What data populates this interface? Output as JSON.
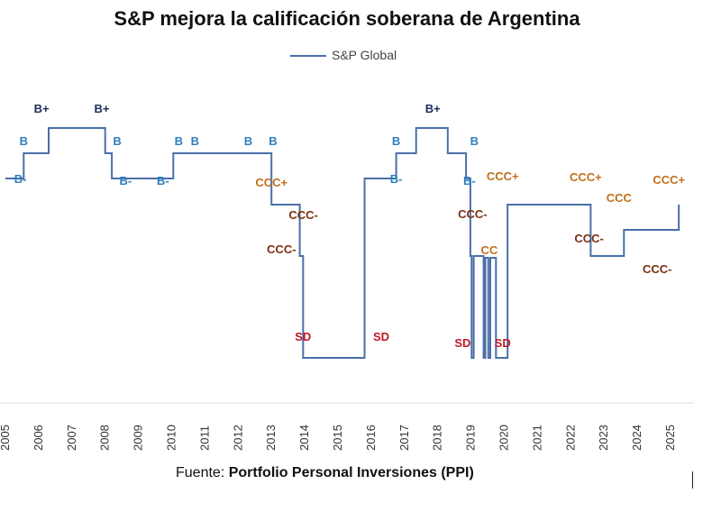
{
  "chart_data": {
    "type": "line",
    "title": "S&P mejora la calificación soberana de Argentina",
    "legend": [
      {
        "name": "S&P Global",
        "color": "#4a6fa8",
        "placement": "top-center"
      }
    ],
    "source_label": "Fuente:",
    "source_name": "Portfolio Personal Inversiones (PPI)",
    "xlabel": "",
    "ylabel": "",
    "grid": false,
    "x_ticks": [
      "2005",
      "2006",
      "2007",
      "2008",
      "2009",
      "2010",
      "2011",
      "2012",
      "2013",
      "2014",
      "2015",
      "2016",
      "2017",
      "2018",
      "2019",
      "2020",
      "2021",
      "2022",
      "2023",
      "2024",
      "2025"
    ],
    "rating_scale": [
      "SD",
      "CC",
      "CCC-",
      "CCC",
      "CCC+",
      "B-",
      "B",
      "B+"
    ],
    "series": [
      {
        "name": "S&P Global",
        "points": [
          {
            "x": 2005.0,
            "rating": "B-"
          },
          {
            "x": 2005.55,
            "rating": "B"
          },
          {
            "x": 2006.3,
            "rating": "B+"
          },
          {
            "x": 2008.0,
            "rating": "B"
          },
          {
            "x": 2008.2,
            "rating": "B-"
          },
          {
            "x": 2010.05,
            "rating": "B"
          },
          {
            "x": 2013.0,
            "rating": "CCC+"
          },
          {
            "x": 2013.85,
            "rating": "CCC-"
          },
          {
            "x": 2013.95,
            "rating": "SD"
          },
          {
            "x": 2015.8,
            "rating": "B-"
          },
          {
            "x": 2016.75,
            "rating": "B"
          },
          {
            "x": 2017.35,
            "rating": "B+"
          },
          {
            "x": 2018.3,
            "rating": "B"
          },
          {
            "x": 2018.85,
            "rating": "B-"
          },
          {
            "x": 2018.98,
            "rating": "CCC-"
          },
          {
            "x": 2019.02,
            "rating": "SD"
          },
          {
            "x": 2019.08,
            "rating": "CCC-"
          },
          {
            "x": 2019.38,
            "rating": "SD"
          },
          {
            "x": 2019.43,
            "rating": "CC"
          },
          {
            "x": 2019.52,
            "rating": "SD"
          },
          {
            "x": 2019.58,
            "rating": "CC"
          },
          {
            "x": 2019.7,
            "rating": "CC"
          },
          {
            "x": 2019.75,
            "rating": "SD"
          },
          {
            "x": 2020.1,
            "rating": "CCC+"
          },
          {
            "x": 2022.6,
            "rating": "CCC-"
          },
          {
            "x": 2023.6,
            "rating": "CCC"
          },
          {
            "x": 2025.25,
            "rating": "CCC+"
          }
        ]
      }
    ],
    "annotations": [
      {
        "text": "B-",
        "x": 2005.45,
        "rating": "B-",
        "color": "#2f7fbf"
      },
      {
        "text": "B",
        "x": 2005.55,
        "rating": "B",
        "color": "#2f7fbf"
      },
      {
        "text": "B+",
        "x": 2006.25,
        "rating": "B+",
        "color": "#1a2f5a"
      },
      {
        "text": "B+",
        "x": 2007.9,
        "rating": "B+",
        "color": "#1a2f5a"
      },
      {
        "text": "B",
        "x": 2008.2,
        "rating": "B",
        "color": "#2f7fbf"
      },
      {
        "text": "B-",
        "x": 2008.45,
        "rating": "B-",
        "color": "#2f7fbf"
      },
      {
        "text": "B-",
        "x": 2009.9,
        "rating": "B-",
        "color": "#2f7fbf"
      },
      {
        "text": "B",
        "x": 2010.05,
        "rating": "B",
        "color": "#2f7fbf"
      },
      {
        "text": "B",
        "x": 2010.7,
        "rating": "B",
        "color": "#2f7fbf"
      },
      {
        "text": "B",
        "x": 2012.3,
        "rating": "B",
        "color": "#2f7fbf"
      },
      {
        "text": "B",
        "x": 2013.05,
        "rating": "B",
        "color": "#2f7fbf"
      },
      {
        "text": "CCC+",
        "x": 2013.0,
        "rating": "CCC+",
        "color": "#c0701a"
      },
      {
        "text": "CCC-",
        "x": 2013.85,
        "rating": "CCC",
        "color": "#7a2f10"
      },
      {
        "text": "CCC-",
        "x": 2013.3,
        "rating": "CCC-",
        "color": "#7a2f10"
      },
      {
        "text": "SD",
        "x": 2013.95,
        "rating": "SD",
        "color": "#c0182a"
      },
      {
        "text": "SD",
        "x": 2016.3,
        "rating": "SD",
        "color": "#c0182a"
      },
      {
        "text": "B",
        "x": 2016.75,
        "rating": "B",
        "color": "#2f7fbf"
      },
      {
        "text": "B-",
        "x": 2016.75,
        "rating": "B-",
        "color": "#2f7fbf"
      },
      {
        "text": "B+",
        "x": 2017.85,
        "rating": "B+",
        "color": "#1a2f5a"
      },
      {
        "text": "B",
        "x": 2019.1,
        "rating": "B",
        "color": "#2f7fbf"
      },
      {
        "text": "B-",
        "x": 2018.95,
        "rating": "B-",
        "color": "#2f7fbf"
      },
      {
        "text": "CCC-",
        "x": 2019.05,
        "rating": "CCC",
        "color": "#7a2f10"
      },
      {
        "text": "CC",
        "x": 2019.55,
        "rating": "CC",
        "color": "#c0701a"
      },
      {
        "text": "SD",
        "x": 2018.75,
        "rating": "SD",
        "color": "#c0182a"
      },
      {
        "text": "SD",
        "x": 2019.95,
        "rating": "SD",
        "color": "#c0182a"
      },
      {
        "text": "CCC+",
        "x": 2019.95,
        "rating": "CCC+",
        "color": "#c0701a"
      },
      {
        "text": "CCC+",
        "x": 2022.45,
        "rating": "CCC+",
        "color": "#c0701a"
      },
      {
        "text": "CCC",
        "x": 2023.45,
        "rating": "CCC+",
        "color": "#c0701a"
      },
      {
        "text": "CCC-",
        "x": 2022.55,
        "rating": "CCC",
        "color": "#7a2f10"
      },
      {
        "text": "CCC-",
        "x": 2024.6,
        "rating": "CCC-",
        "color": "#7a2f10"
      },
      {
        "text": "CCC+",
        "x": 2024.95,
        "rating": "CCC+",
        "color": "#c0701a"
      }
    ]
  }
}
